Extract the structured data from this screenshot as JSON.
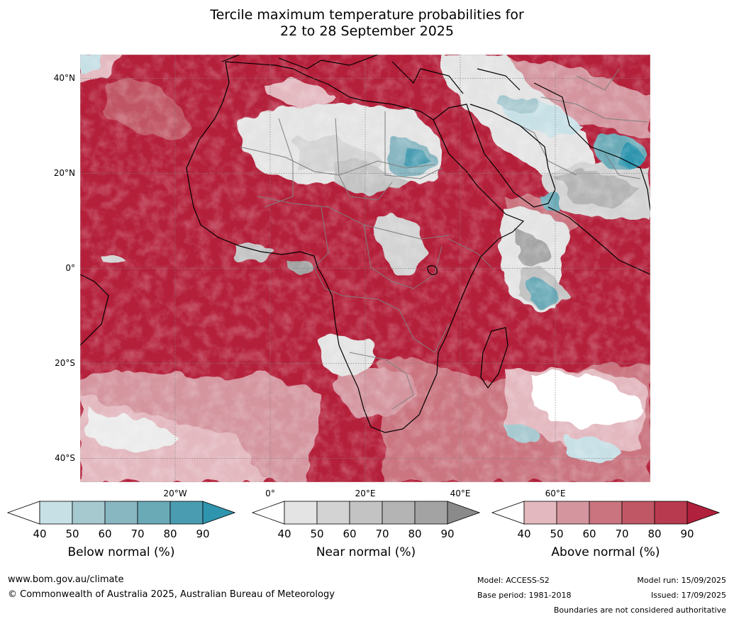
{
  "title": {
    "line1": "Tercile maximum temperature probabilities for",
    "line2": "22 to 28 September 2025"
  },
  "map": {
    "lat_labels": [
      "40°N",
      "20°N",
      "0°",
      "20°S",
      "40°S"
    ],
    "lat_values": [
      40,
      20,
      0,
      -20,
      -40
    ],
    "lon_labels": [
      "20°W",
      "0°",
      "20°E",
      "40°E",
      "60°E"
    ],
    "lon_values": [
      -20,
      0,
      20,
      40,
      60
    ],
    "extent": {
      "lon": [
        -40,
        80
      ],
      "lat": [
        -45,
        45
      ]
    },
    "colors": {
      "ocean_base": "#b41f3a",
      "coastline": "#000000",
      "borders": "#7f7f7f",
      "grid": "#808080"
    }
  },
  "colorbars": [
    {
      "name": "below-normal",
      "label": "Below normal (%)",
      "ticks": [
        "40",
        "50",
        "60",
        "70",
        "80",
        "90"
      ],
      "colors": [
        "#ffffff",
        "#c7e0e6",
        "#a6c8cf",
        "#88b6c1",
        "#6aaab7",
        "#4a9db1",
        "#2f95ae"
      ]
    },
    {
      "name": "near-normal",
      "label": "Near normal (%)",
      "ticks": [
        "40",
        "50",
        "60",
        "70",
        "80",
        "90"
      ],
      "colors": [
        "#ffffff",
        "#e4e4e4",
        "#d3d3d3",
        "#c3c3c3",
        "#b4b4b4",
        "#a3a3a3",
        "#8a8a8a"
      ]
    },
    {
      "name": "above-normal",
      "label": "Above normal (%)",
      "ticks": [
        "40",
        "50",
        "60",
        "70",
        "80",
        "90"
      ],
      "colors": [
        "#ffffff",
        "#e3b8bf",
        "#d4959f",
        "#ca7480",
        "#c05765",
        "#b83a4e",
        "#b1203c"
      ]
    }
  ],
  "footer": {
    "url": "www.bom.gov.au/climate",
    "copyright": "© Commonwealth of Australia 2025, Australian Bureau of Meteorology",
    "model": "Model: ACCESS-S2",
    "base_period": "Base period: 1981-2018",
    "model_run": "Model run: 15/09/2025",
    "issued": "Issued: 17/09/2025",
    "disclaimer": "Boundaries are not considered authoritative"
  }
}
